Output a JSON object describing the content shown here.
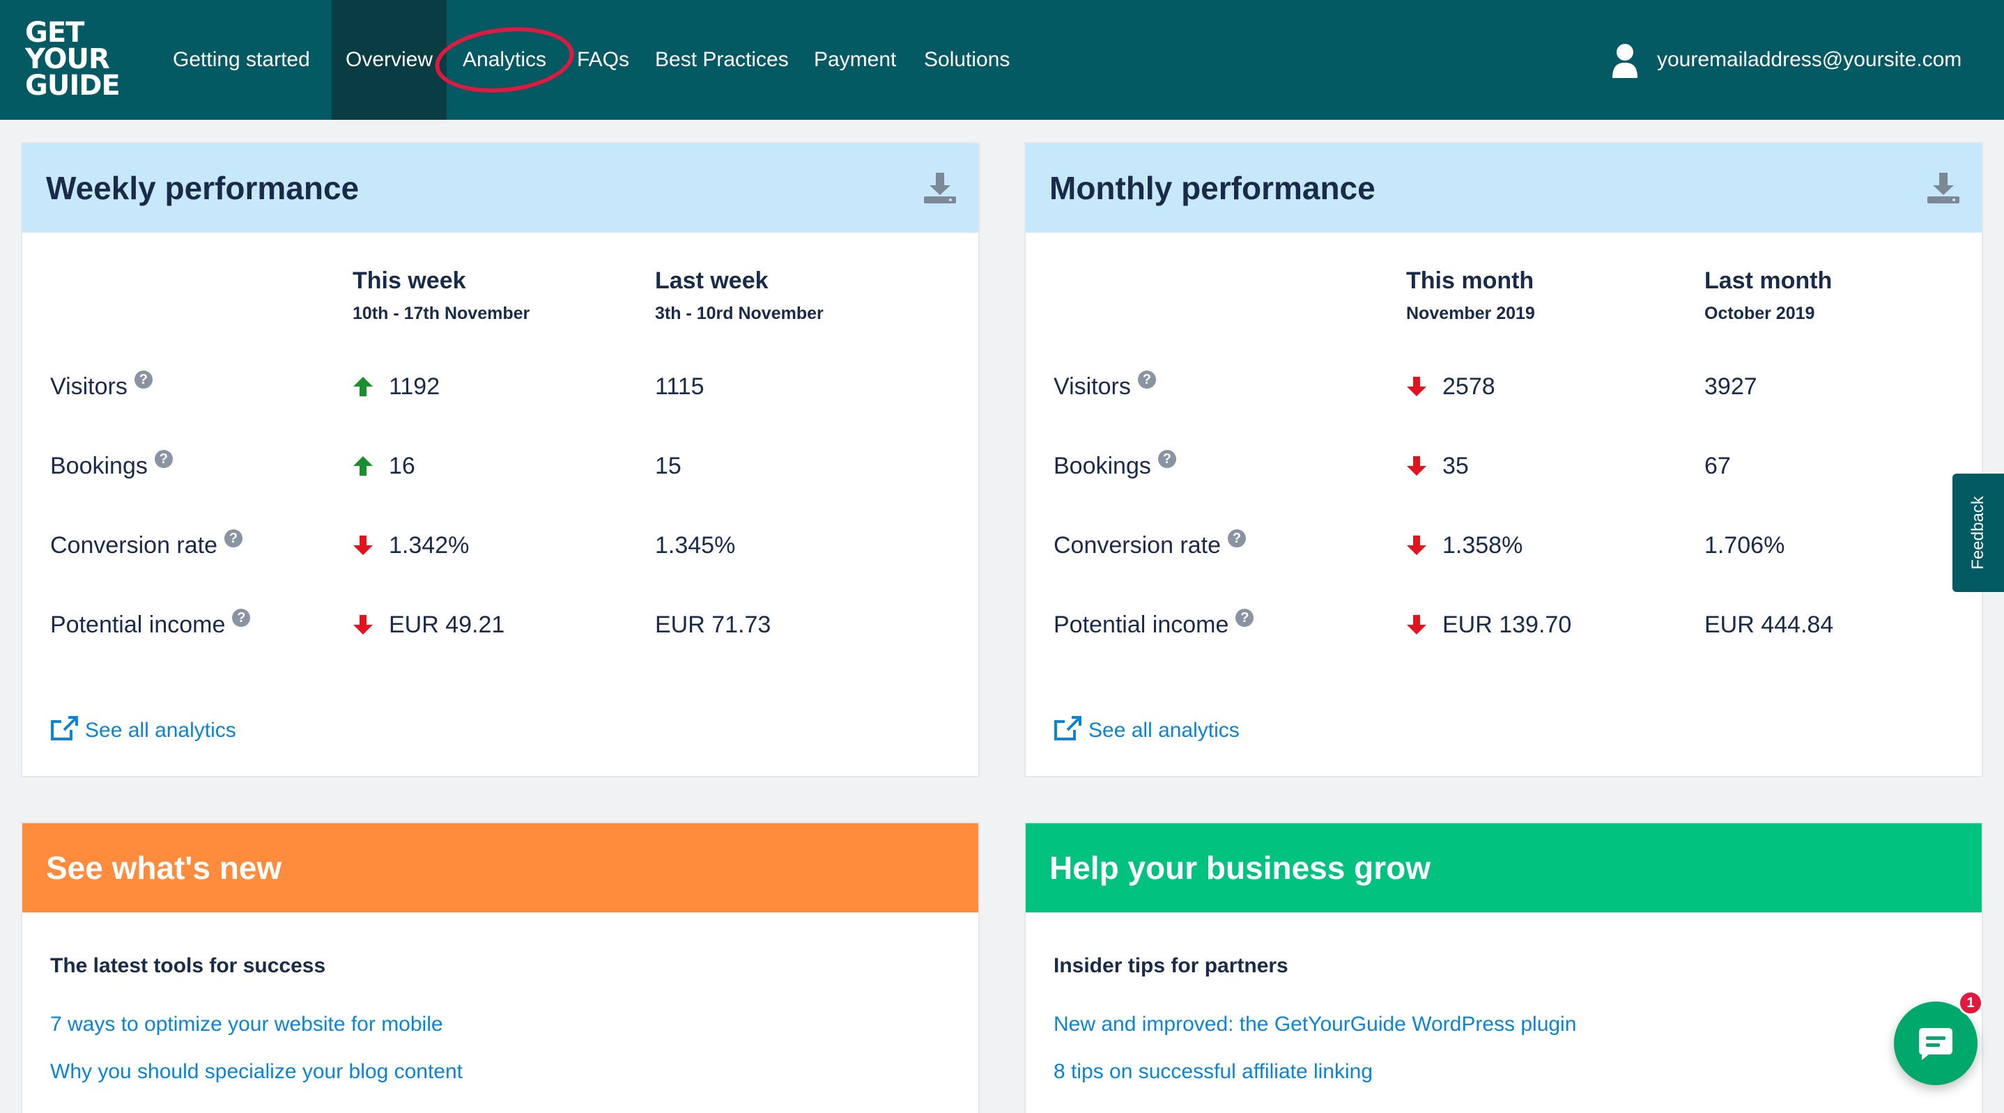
{
  "nav": {
    "logo": [
      "GET",
      "YOUR",
      "GUIDE"
    ],
    "items": [
      "Getting started",
      "Overview",
      "Analytics",
      "FAQs",
      "Best Practices",
      "Payment",
      "Solutions"
    ],
    "active": "Overview",
    "user_email": "youremailaddress@yoursite.com"
  },
  "weekly": {
    "title": "Weekly performance",
    "col1_head": "This week",
    "col1_sub": "10th - 17th November",
    "col2_head": "Last week",
    "col2_sub": "3th - 10rd November",
    "rows": [
      {
        "label": "Visitors",
        "trend": "up",
        "current": "1192",
        "previous": "1115"
      },
      {
        "label": "Bookings",
        "trend": "up",
        "current": "16",
        "previous": "15"
      },
      {
        "label": "Conversion rate",
        "trend": "down",
        "current": "1.342%",
        "previous": "1.345%"
      },
      {
        "label": "Potential income",
        "trend": "down",
        "current": "EUR 49.21",
        "previous": "EUR 71.73"
      }
    ],
    "see_all": "See all analytics"
  },
  "monthly": {
    "title": "Monthly performance",
    "col1_head": "This month",
    "col1_sub": "November 2019",
    "col2_head": "Last month",
    "col2_sub": "October 2019",
    "rows": [
      {
        "label": "Visitors",
        "trend": "down",
        "current": "2578",
        "previous": "3927"
      },
      {
        "label": "Bookings",
        "trend": "down",
        "current": "35",
        "previous": "67"
      },
      {
        "label": "Conversion rate",
        "trend": "down",
        "current": "1.358%",
        "previous": "1.706%"
      },
      {
        "label": "Potential income",
        "trend": "down",
        "current": "EUR 139.70",
        "previous": "EUR 444.84"
      }
    ],
    "see_all": "See all analytics"
  },
  "whats_new": {
    "title": "See what's new",
    "subtitle": "The latest tools for success",
    "links": [
      "7 ways to optimize your website for mobile",
      "Why you should specialize your blog content"
    ]
  },
  "grow": {
    "title": "Help your business grow",
    "subtitle": "Insider tips for partners",
    "links": [
      "New and improved: the GetYourGuide WordPress plugin",
      "8 tips on successful affiliate linking"
    ]
  },
  "feedback_label": "Feedback",
  "chat_badge": "1",
  "colors": {
    "nav_bg": "#045a62",
    "nav_active": "#0a3c43",
    "header_blue": "#c7e8fb",
    "header_orange": "#ff8c3c",
    "header_green": "#01c27e",
    "link_blue": "#0a84d6",
    "trend_up": "#1a8f2e",
    "trend_down": "#e3141d",
    "annotation_red": "#e3183e"
  }
}
